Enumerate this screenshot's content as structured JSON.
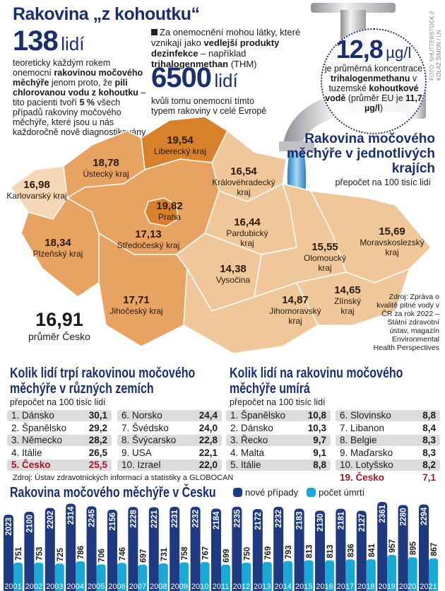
{
  "header": {
    "title": "Rakovina „z kohoutku“"
  },
  "stat1": {
    "value": "138",
    "unit": "lidí",
    "text_parts": [
      "teoreticky každým rokem onemocní ",
      "rakovinou močového měchýře",
      " jenom proto, že ",
      "pili chlorovanou vodu z kohoutku",
      " – tito pacienti tvoří ",
      "5 %",
      " všech případů rakoviny močového měchýře, které jsou u nás každoročně nově diagnostikovány"
    ]
  },
  "note": {
    "parts": [
      "Za onemocnění mohou látky, které vznikají jako ",
      "vedlejší produkty dezinfekce",
      " – například ",
      "trihalogenmethan",
      " (THM)"
    ]
  },
  "stat2": {
    "value": "6500",
    "unit": "lidí",
    "text": "kvůli tomu onemocní tímto typem rakoviny v celé Evropě"
  },
  "stat3": {
    "value": "12,8",
    "unit": "µg/l",
    "parts": [
      "je průměrná koncentrace ",
      "trihalogenmethanu",
      " v tuzemské ",
      "kohoutkové vodě",
      " (průměr EU je ",
      "11,7 µg/l",
      ")"
    ]
  },
  "photo_credit": "FOTO: SHUTTERSTOCK // KOLÁŽ ŠIMON / LN",
  "map": {
    "title": "Rakovina močového měchýře v jednotlivých krajích",
    "subtitle": "přepočet na 100 tisíc lidí",
    "colors": {
      "dark": "#d9802c",
      "medium": "#e8a262",
      "light": "#f0c69b",
      "lightest": "#f5d6b5"
    },
    "regions": [
      {
        "name": "Karlovarský kraj",
        "value": "16,98"
      },
      {
        "name": "Ústecký kraj",
        "value": "18,78"
      },
      {
        "name": "Liberecký kraj",
        "value": "19,54"
      },
      {
        "name": "Královéhradecký kraj",
        "value": "16,54"
      },
      {
        "name": "Praha",
        "value": "19,82"
      },
      {
        "name": "Středočeský kraj",
        "value": "17,13"
      },
      {
        "name": "Plzeňský kraj",
        "value": "18,34"
      },
      {
        "name": "Jihočeský kraj",
        "value": "17,71"
      },
      {
        "name": "Pardubický kraj",
        "value": "16,44"
      },
      {
        "name": "Vysočina",
        "value": "14,38"
      },
      {
        "name": "Jihomoravský kraj",
        "value": "14,87"
      },
      {
        "name": "Olomoucký kraj",
        "value": "15,55"
      },
      {
        "name": "Zlínský kraj",
        "value": "14,65"
      },
      {
        "name": "Moravskoslezský kraj",
        "value": "15,69"
      }
    ],
    "average": {
      "value": "16,91",
      "label": "průměr Česko"
    },
    "source": "Zdroj: Zpráva o kvalitě pitné vody v ČR za rok 2022 – Státní zdravotní ústav, magazín Environmental Health Perspectives"
  },
  "incidence": {
    "title": "Kolik lidí trpí rakovinou močového měchýře v různých zemích",
    "subtitle": "přepočet na 100 tisíc lidí",
    "rows": [
      {
        "rank": "1.",
        "country": "Dánsko",
        "value": "30,1"
      },
      {
        "rank": "2.",
        "country": "Španělsko",
        "value": "29,2"
      },
      {
        "rank": "3.",
        "country": "Německo",
        "value": "28,2"
      },
      {
        "rank": "4.",
        "country": "Itálie",
        "value": "26,5"
      },
      {
        "rank": "5.",
        "country": "Česko",
        "value": "25,5"
      },
      {
        "rank": "6.",
        "country": "Norsko",
        "value": "24,4"
      },
      {
        "rank": "7.",
        "country": "Švédsko",
        "value": "24,0"
      },
      {
        "rank": "8.",
        "country": "Švýcarsko",
        "value": "22,8"
      },
      {
        "rank": "9.",
        "country": "USA",
        "value": "22,1"
      },
      {
        "rank": "10.",
        "country": "Izrael",
        "value": "22,0"
      }
    ],
    "source": "Zdroj: Ústav zdravotnických informací a statistiky a GLOBOCAN"
  },
  "mortality": {
    "title": "Kolik lidí na rakovinu močového měchýře umírá",
    "subtitle": "přepočet na 100 tisíc lidí",
    "rows": [
      {
        "rank": "1.",
        "country": "Španělsko",
        "value": "10,8"
      },
      {
        "rank": "2.",
        "country": "Dánsko",
        "value": "10,3"
      },
      {
        "rank": "3.",
        "country": "Řecko",
        "value": "9,7"
      },
      {
        "rank": "4.",
        "country": "Malta",
        "value": "9,1"
      },
      {
        "rank": "5.",
        "country": "Itálie",
        "value": "8,8"
      },
      {
        "rank": "6.",
        "country": "Slovinsko",
        "value": "8,8"
      },
      {
        "rank": "7.",
        "country": "Libanon",
        "value": "8,4"
      },
      {
        "rank": "8.",
        "country": "Belgie",
        "value": "8,3"
      },
      {
        "rank": "9.",
        "country": "Maďarsko",
        "value": "8,3"
      },
      {
        "rank": "10.",
        "country": "Lotyšsko",
        "value": "8,2"
      },
      {
        "rank": "19.",
        "country": "Česko",
        "value": "7,1"
      }
    ]
  },
  "chart_data": {
    "type": "bar",
    "title": "Rakovina močového měchýře v Česku",
    "categories": [
      "2001",
      "2002",
      "2003",
      "2004",
      "2005",
      "2006",
      "2007",
      "2008",
      "2009",
      "2010",
      "2011",
      "2012",
      "2013",
      "2014",
      "2015",
      "2016",
      "2017",
      "2018",
      "2019",
      "2020",
      "2021"
    ],
    "series": [
      {
        "name": "nové případy",
        "color": "#1f3a80",
        "values": [
          2023,
          2100,
          2202,
          2314,
          2245,
          2156,
          2228,
          2221,
          2231,
          2232,
          2184,
          2235,
          2172,
          2232,
          2183,
          2130,
          2181,
          2127,
          2361,
          2280,
          2294
        ]
      },
      {
        "name": "počet úmrtí",
        "color": "#1aa8d6",
        "values": [
          751,
          753,
          725,
          786,
          706,
          746,
          697,
          731,
          758,
          767,
          699,
          750,
          769,
          793,
          813,
          813,
          836,
          841,
          957,
          895,
          867
        ]
      }
    ],
    "legend": "top",
    "grid": false
  }
}
